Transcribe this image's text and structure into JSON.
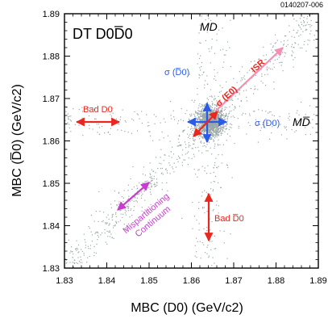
{
  "figure_code": "0140207-006",
  "colors": {
    "points": "#9aa8a8",
    "red": "#e8281e",
    "blue": "#2a5ae8",
    "magenta": "#c83ccf",
    "pink": "#f28fb3",
    "black": "#000000"
  },
  "chart_data": {
    "type": "scatter",
    "title": "DT D0D̅0",
    "xlabel": "MBC (D0) (GeV/c2)",
    "ylabel": "MBC (D̅0) (GeV/c2)",
    "xlim": [
      1.83,
      1.89
    ],
    "ylim": [
      1.83,
      1.89
    ],
    "x_ticks": [
      "1.83",
      "1.84",
      "1.85",
      "1.86",
      "1.87",
      "1.88",
      "1.89"
    ],
    "y_ticks": [
      "1.83",
      "1.84",
      "1.85",
      "1.86",
      "1.87",
      "1.88",
      "1.89"
    ],
    "grid": false,
    "peak": {
      "x": 1.8645,
      "y": 1.8645
    },
    "series": [
      {
        "name": "events",
        "description_points": "dense cluster at peak plus diagonal band, horizontal and vertical bands"
      }
    ],
    "annotations": {
      "md": "MD",
      "mdbar": "MD̅",
      "isr": "ISR",
      "sigma_e": "σ (E0)",
      "sigma_dbar": "σ (D̅0)",
      "sigma_d": "σ (D0)",
      "bad_d": "Bad D0",
      "bad_dbar": "Bad D̅0",
      "mispartition_line1": "Mispartitioning",
      "mispartition_line2": "Continuum"
    }
  }
}
